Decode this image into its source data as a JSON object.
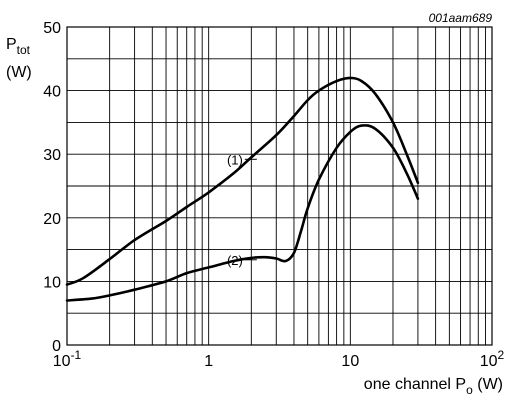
{
  "chart_data": {
    "type": "line",
    "reference": "001aam689",
    "ylabel": {
      "main": "P",
      "sub": "tot",
      "unit": "(W)"
    },
    "xlabel": {
      "prefix": "one channel P",
      "sub": "o",
      "suffix": " (W)"
    },
    "xscale": "log",
    "xlim": [
      0.1,
      100
    ],
    "ylim": [
      0,
      50
    ],
    "grid": true,
    "y_ticks": [
      {
        "value": 0,
        "label": "0"
      },
      {
        "value": 10,
        "label": "10"
      },
      {
        "value": 20,
        "label": "20"
      },
      {
        "value": 30,
        "label": "30"
      },
      {
        "value": 40,
        "label": "40"
      },
      {
        "value": 50,
        "label": "50"
      }
    ],
    "x_ticks": [
      {
        "value": 0.1,
        "base": "10",
        "exp": "-1"
      },
      {
        "value": 1,
        "base": "1",
        "exp": ""
      },
      {
        "value": 10,
        "base": "10",
        "exp": ""
      },
      {
        "value": 100,
        "base": "10",
        "exp": "2"
      }
    ],
    "series": [
      {
        "name": "(1)",
        "label_at": {
          "x": 1.8,
          "y": 29.2
        },
        "points": [
          [
            0.1,
            9.5
          ],
          [
            0.13,
            10.5
          ],
          [
            0.2,
            13.5
          ],
          [
            0.3,
            16.5
          ],
          [
            0.5,
            19.5
          ],
          [
            0.7,
            21.7
          ],
          [
            1,
            24.0
          ],
          [
            1.5,
            27.0
          ],
          [
            2,
            29.5
          ],
          [
            3,
            33.0
          ],
          [
            4,
            36.0
          ],
          [
            5,
            38.5
          ],
          [
            6,
            40.0
          ],
          [
            8,
            41.5
          ],
          [
            10,
            42.0
          ],
          [
            12,
            41.5
          ],
          [
            15,
            39.5
          ],
          [
            20,
            35.0
          ],
          [
            25,
            30.0
          ],
          [
            30,
            25.5
          ]
        ]
      },
      {
        "name": "(2)",
        "label_at": {
          "x": 1.8,
          "y": 13.4
        },
        "points": [
          [
            0.1,
            7.0
          ],
          [
            0.15,
            7.3
          ],
          [
            0.2,
            7.8
          ],
          [
            0.3,
            8.7
          ],
          [
            0.5,
            10.0
          ],
          [
            0.7,
            11.3
          ],
          [
            1,
            12.2
          ],
          [
            1.5,
            13.2
          ],
          [
            2,
            13.7
          ],
          [
            2.5,
            13.8
          ],
          [
            3,
            13.6
          ],
          [
            3.5,
            13.2
          ],
          [
            4,
            14.5
          ],
          [
            4.5,
            18.0
          ],
          [
            5,
            21.5
          ],
          [
            6,
            26.0
          ],
          [
            8,
            31.0
          ],
          [
            10,
            33.5
          ],
          [
            12,
            34.5
          ],
          [
            15,
            34.0
          ],
          [
            20,
            31.0
          ],
          [
            25,
            27.0
          ],
          [
            30,
            23.0
          ]
        ]
      }
    ]
  }
}
